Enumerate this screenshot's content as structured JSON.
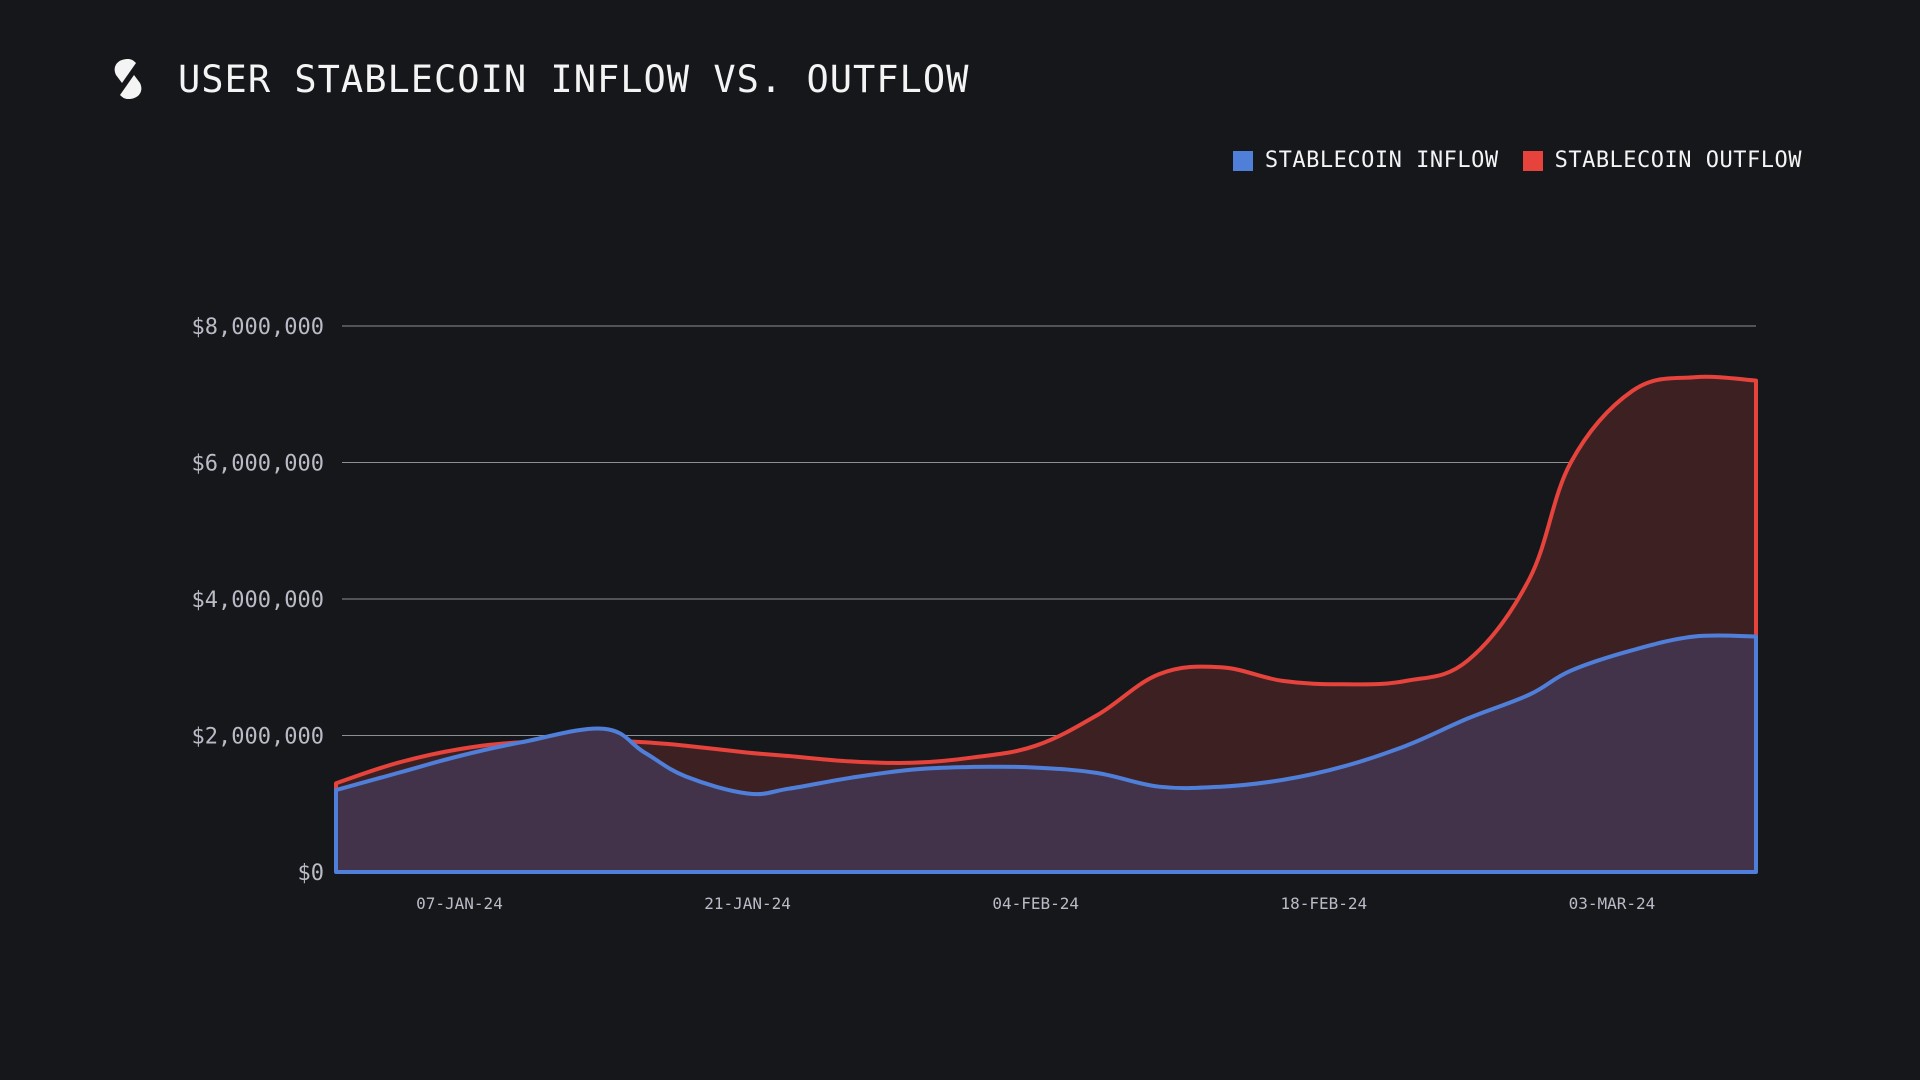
{
  "header": {
    "title": "USER STABLECOIN INFLOW VS. OUTFLOW",
    "logo_icon": "s-slash-logo-icon"
  },
  "colors": {
    "background": "#16171b",
    "inflow_line": "#4f7fd9",
    "inflow_fill": "#43334a",
    "outflow_line": "#e5433c",
    "outflow_fill": "#3d2022",
    "grid": "#8d8f96"
  },
  "chart_data": {
    "type": "area",
    "title": "USER STABLECOIN INFLOW VS. OUTFLOW",
    "x_tick_labels": [
      "07-JAN-24",
      "21-JAN-24",
      "04-FEB-24",
      "18-FEB-24",
      "03-MAR-24"
    ],
    "y_tick_labels": [
      "$0",
      "$2,000,000",
      "$4,000,000",
      "$6,000,000",
      "$8,000,000"
    ],
    "y_ticks": [
      0,
      2000000,
      4000000,
      6000000,
      8000000
    ],
    "ylim": [
      0,
      8000000
    ],
    "grid": true,
    "legend_position": "top-right",
    "series": [
      {
        "name": "STABLECOIN INFLOW",
        "color": "#4f7fd9",
        "x": [
          "2024-01-01",
          "2024-01-04",
          "2024-01-07",
          "2024-01-10",
          "2024-01-14",
          "2024-01-16",
          "2024-01-18",
          "2024-01-21",
          "2024-01-23",
          "2024-01-26",
          "2024-01-29",
          "2024-02-01",
          "2024-02-04",
          "2024-02-07",
          "2024-02-10",
          "2024-02-13",
          "2024-02-16",
          "2024-02-19",
          "2024-02-22",
          "2024-02-25",
          "2024-02-28",
          "2024-03-01",
          "2024-03-04",
          "2024-03-07",
          "2024-03-10"
        ],
        "values": [
          1200000,
          1450000,
          1700000,
          1900000,
          2100000,
          1750000,
          1400000,
          1150000,
          1220000,
          1380000,
          1500000,
          1540000,
          1530000,
          1450000,
          1250000,
          1250000,
          1350000,
          1550000,
          1850000,
          2250000,
          2600000,
          2950000,
          3250000,
          3450000,
          3450000
        ]
      },
      {
        "name": "STABLECOIN OUTFLOW",
        "color": "#e5433c",
        "x": [
          "2024-01-01",
          "2024-01-04",
          "2024-01-07",
          "2024-01-10",
          "2024-01-14",
          "2024-01-16",
          "2024-01-18",
          "2024-01-21",
          "2024-01-23",
          "2024-01-26",
          "2024-01-29",
          "2024-02-01",
          "2024-02-04",
          "2024-02-07",
          "2024-02-10",
          "2024-02-13",
          "2024-02-16",
          "2024-02-19",
          "2024-02-22",
          "2024-02-25",
          "2024-02-28",
          "2024-03-01",
          "2024-03-04",
          "2024-03-07",
          "2024-03-10"
        ],
        "values": [
          1300000,
          1600000,
          1800000,
          1900000,
          1920000,
          1900000,
          1850000,
          1750000,
          1700000,
          1620000,
          1600000,
          1680000,
          1850000,
          2300000,
          2900000,
          3000000,
          2800000,
          2750000,
          2800000,
          3100000,
          4300000,
          6000000,
          7050000,
          7250000,
          7200000
        ]
      }
    ]
  }
}
